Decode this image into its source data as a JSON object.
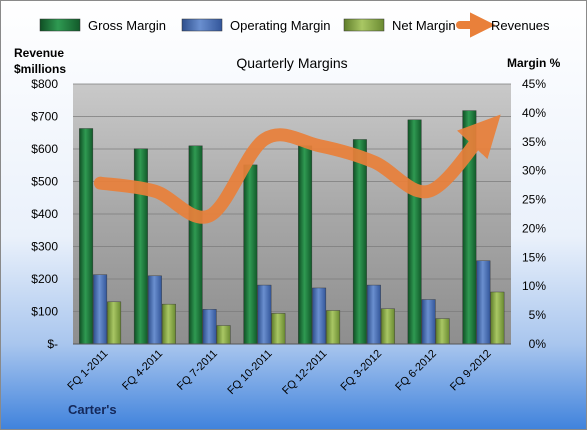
{
  "chart_data": {
    "type": "bar",
    "title": "Quarterly Margins",
    "footer": "Carter's",
    "categories": [
      "FQ 1-2011",
      "FQ 4-2011",
      "FQ 7-2011",
      "FQ 10-2011",
      "FQ 12-2011",
      "FQ 3-2012",
      "FQ 6-2012",
      "FQ 9-2012"
    ],
    "series": [
      {
        "name": "Gross Margin",
        "axis": "right",
        "kind": "bar",
        "color": "#1f7a3f",
        "values": [
          37.3,
          33.8,
          34.3,
          31.0,
          34.3,
          35.4,
          38.8,
          40.4
        ]
      },
      {
        "name": "Operating Margin",
        "axis": "right",
        "kind": "bar",
        "color": "#4a6eb0",
        "values": [
          12.0,
          11.8,
          6.0,
          10.2,
          9.7,
          10.2,
          7.7,
          14.4
        ]
      },
      {
        "name": "Net Margin",
        "axis": "right",
        "kind": "bar",
        "color": "#8db04a",
        "values": [
          7.3,
          6.9,
          3.2,
          5.3,
          5.8,
          6.1,
          4.4,
          9.0
        ]
      },
      {
        "name": "Revenues",
        "axis": "left",
        "kind": "line",
        "color": "#e9803a",
        "values": [
          495,
          470,
          395,
          630,
          610,
          560,
          470,
          650
        ]
      }
    ],
    "y_left": {
      "label_line1": "Revenue",
      "label_line2": "$millions",
      "range": [
        0,
        800
      ],
      "ticks": [
        "$-",
        "$100",
        "$200",
        "$300",
        "$400",
        "$500",
        "$600",
        "$700",
        "$800"
      ]
    },
    "y_right": {
      "label": "Margin %",
      "range": [
        0,
        45
      ],
      "ticks": [
        "0%",
        "5%",
        "10%",
        "15%",
        "20%",
        "25%",
        "30%",
        "35%",
        "40%",
        "45%"
      ]
    },
    "grid": true,
    "legend": "top"
  }
}
